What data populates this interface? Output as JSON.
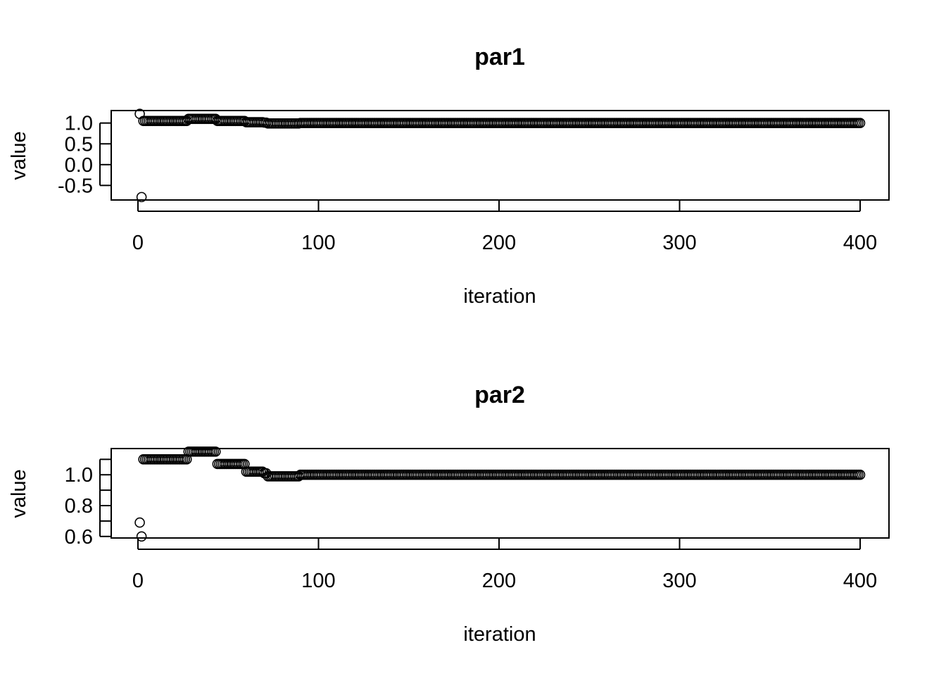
{
  "chart_data": [
    {
      "type": "scatter",
      "title": "par1",
      "xlabel": "iteration",
      "ylabel": "value",
      "xlim": [
        0,
        400
      ],
      "x_ticks": [
        "0",
        "100",
        "200",
        "300",
        "400"
      ],
      "y_ticks": [
        "1.0",
        "0.5",
        "0.0",
        "-0.5"
      ],
      "ylim": [
        -0.85,
        1.3
      ],
      "series": [
        {
          "x": [
            1,
            2,
            3,
            4,
            5,
            10,
            15,
            20,
            25,
            26,
            28,
            30,
            35,
            40,
            43,
            44,
            45,
            50,
            55,
            58,
            60,
            65,
            70,
            72,
            75,
            80,
            85,
            88,
            90,
            100,
            110,
            120,
            150,
            200,
            250,
            300,
            350,
            400
          ],
          "y": [
            1.22,
            -0.78,
            1.05,
            1.05,
            1.05,
            1.05,
            1.05,
            1.05,
            1.05,
            1.05,
            1.1,
            1.1,
            1.1,
            1.1,
            1.1,
            1.05,
            1.05,
            1.05,
            1.05,
            1.05,
            1.02,
            1.02,
            1.01,
            0.99,
            0.99,
            0.99,
            0.99,
            0.99,
            1.0,
            1.0,
            1.0,
            1.0,
            1.0,
            1.0,
            1.0,
            1.0,
            1.0,
            1.0
          ]
        }
      ]
    },
    {
      "type": "scatter",
      "title": "par2",
      "xlabel": "iteration",
      "ylabel": "value",
      "xlim": [
        0,
        400
      ],
      "x_ticks": [
        "0",
        "100",
        "200",
        "300",
        "400"
      ],
      "y_ticks": [
        "1.0",
        "0.8",
        "0.6"
      ],
      "ylim": [
        0.59,
        1.17
      ],
      "series": [
        {
          "x": [
            1,
            2,
            3,
            4,
            5,
            10,
            15,
            20,
            25,
            26,
            28,
            30,
            35,
            40,
            43,
            44,
            45,
            50,
            55,
            58,
            60,
            65,
            70,
            72,
            75,
            80,
            85,
            88,
            90,
            100,
            110,
            120,
            150,
            200,
            250,
            300,
            350,
            400
          ],
          "y": [
            0.69,
            0.6,
            1.1,
            1.1,
            1.1,
            1.1,
            1.1,
            1.1,
            1.1,
            1.1,
            1.15,
            1.15,
            1.15,
            1.15,
            1.15,
            1.07,
            1.07,
            1.07,
            1.07,
            1.07,
            1.02,
            1.02,
            1.01,
            0.99,
            0.99,
            0.99,
            0.99,
            0.99,
            1.0,
            1.0,
            1.0,
            1.0,
            1.0,
            1.0,
            1.0,
            1.0,
            1.0,
            1.0
          ]
        }
      ]
    }
  ]
}
